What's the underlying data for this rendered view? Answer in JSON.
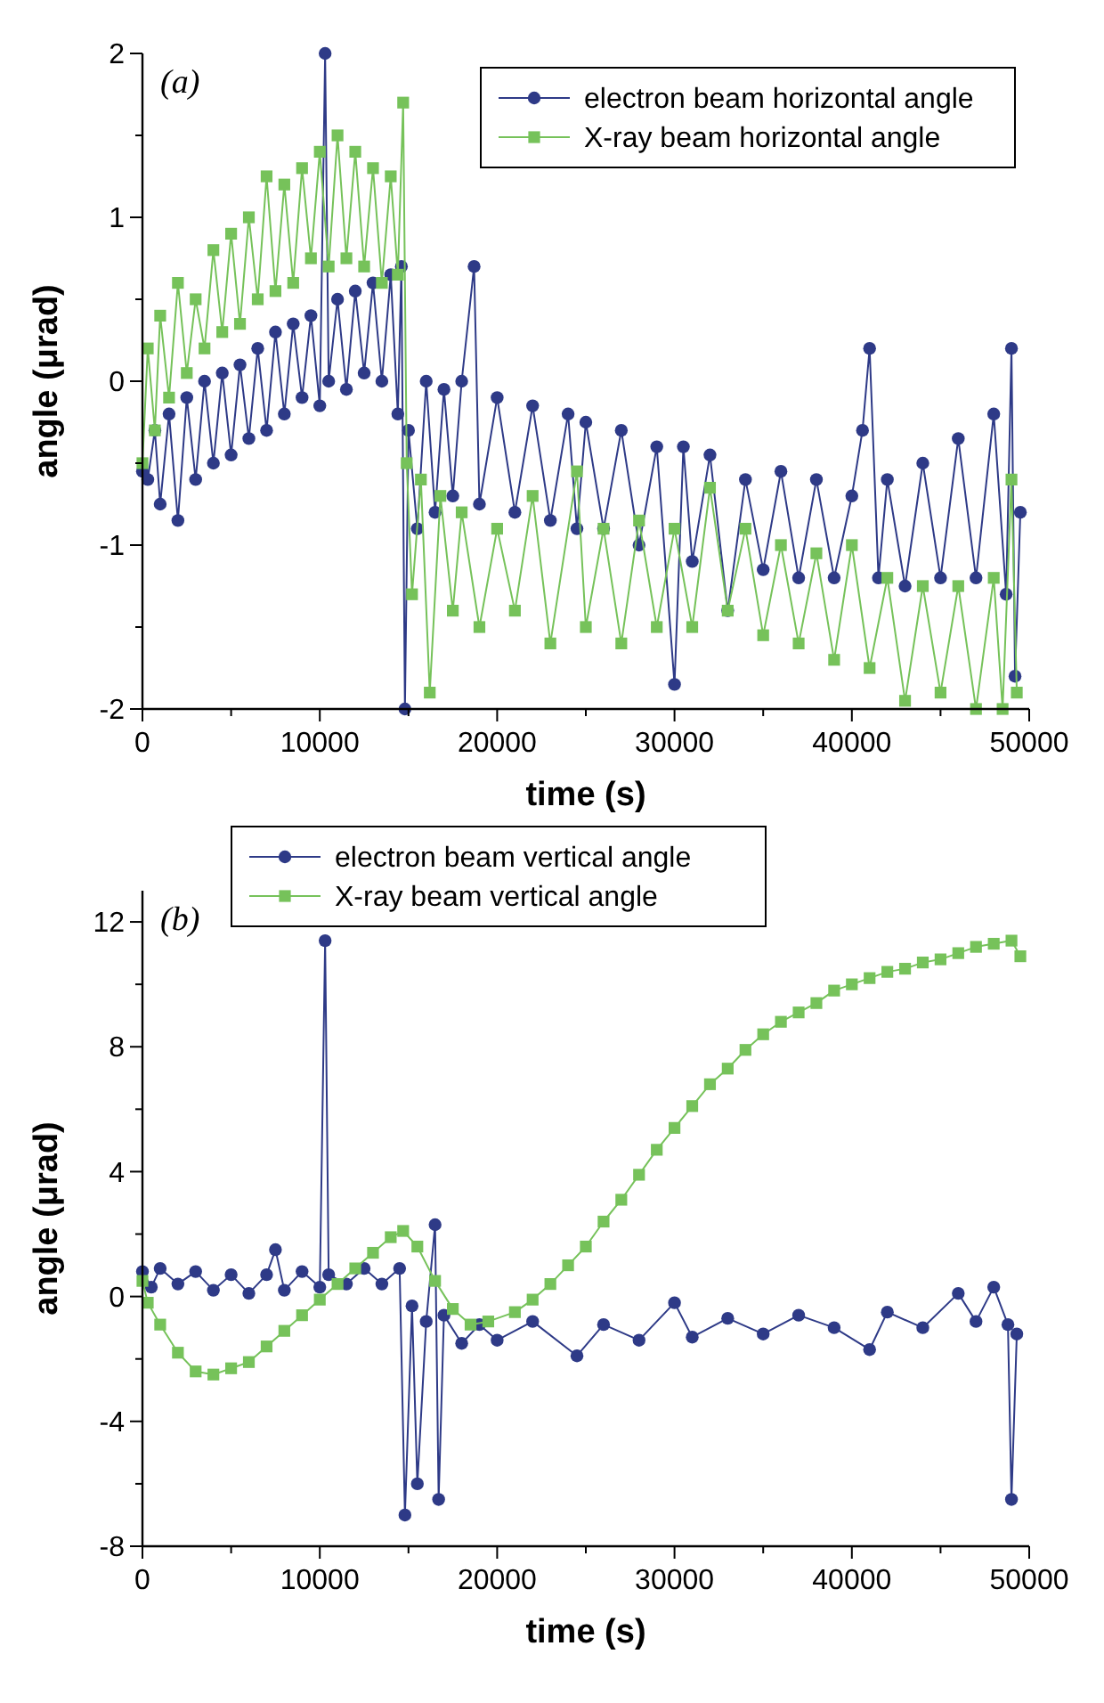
{
  "chart_data": [
    {
      "type": "line",
      "annotations": [
        "(a)"
      ],
      "xlabel": "time (s)",
      "ylabel": "angle (μrad)",
      "xlim": [
        0,
        50000
      ],
      "ylim": [
        -2,
        2
      ],
      "xticks": [
        0,
        {
          "value": 5000,
          "label": null
        },
        10000,
        {
          "value": 15000,
          "label": null
        },
        20000,
        {
          "value": 25000,
          "label": null
        },
        30000,
        {
          "value": 35000,
          "label": null
        },
        40000,
        {
          "value": 45000,
          "label": null
        },
        50000
      ],
      "yticks": [
        -2,
        {
          "value": -1.5,
          "label": null
        },
        -1,
        {
          "value": -0.5,
          "label": null
        },
        0,
        {
          "value": 0.5,
          "label": null
        },
        1,
        {
          "value": 1.5,
          "label": null
        },
        2
      ],
      "legend": "top right",
      "grid": false,
      "line_style": "solid",
      "series": [
        {
          "name": "electron beam horizontal angle",
          "color": "#2e3a87",
          "marker": "circle",
          "x": [
            0,
            300,
            700,
            1000,
            1500,
            2000,
            2500,
            3000,
            3500,
            4000,
            4500,
            5000,
            5500,
            6000,
            6500,
            7000,
            7500,
            8000,
            8500,
            9000,
            9500,
            10000,
            10300,
            10500,
            11000,
            11500,
            12000,
            12500,
            13000,
            13500,
            14000,
            14400,
            14600,
            14800,
            15000,
            15500,
            16000,
            16500,
            17000,
            17500,
            18000,
            18700,
            19000,
            20000,
            21000,
            22000,
            23000,
            24000,
            24500,
            25000,
            26000,
            27000,
            28000,
            29000,
            30000,
            30500,
            31000,
            32000,
            33000,
            34000,
            35000,
            36000,
            37000,
            38000,
            39000,
            40000,
            40600,
            41000,
            41500,
            42000,
            43000,
            44000,
            45000,
            46000,
            47000,
            48000,
            48700,
            49000,
            49200,
            49500
          ],
          "values": [
            -0.55,
            -0.6,
            -0.3,
            -0.75,
            -0.2,
            -0.85,
            -0.1,
            -0.6,
            0,
            -0.5,
            0.05,
            -0.45,
            0.1,
            -0.35,
            0.2,
            -0.3,
            0.3,
            -0.2,
            0.35,
            -0.1,
            0.4,
            -0.15,
            2.0,
            0.0,
            0.5,
            -0.05,
            0.55,
            0.05,
            0.6,
            0.0,
            0.65,
            -0.2,
            0.7,
            -2.0,
            -0.3,
            -0.9,
            0,
            -0.8,
            -0.05,
            -0.7,
            0,
            0.7,
            -0.75,
            -0.1,
            -0.8,
            -0.15,
            -0.85,
            -0.2,
            -0.9,
            -0.25,
            -0.9,
            -0.3,
            -1.0,
            -0.4,
            -1.85,
            -0.4,
            -1.1,
            -0.45,
            -1.4,
            -0.6,
            -1.15,
            -0.55,
            -1.2,
            -0.6,
            -1.2,
            -0.7,
            -0.3,
            0.2,
            -1.2,
            -0.6,
            -1.25,
            -0.5,
            -1.2,
            -0.35,
            -1.2,
            -0.2,
            -1.3,
            0.2,
            -1.8,
            -0.8
          ]
        },
        {
          "name": "X-ray beam horizontal angle",
          "color": "#76c25a",
          "marker": "square",
          "x": [
            0,
            300,
            700,
            1000,
            1500,
            2000,
            2500,
            3000,
            3500,
            4000,
            4500,
            5000,
            5500,
            6000,
            6500,
            7000,
            7500,
            8000,
            8500,
            9000,
            9500,
            10000,
            10500,
            11000,
            11500,
            12000,
            12500,
            13000,
            13500,
            14000,
            14400,
            14700,
            14900,
            15200,
            15700,
            16200,
            16800,
            17500,
            18000,
            19000,
            20000,
            21000,
            22000,
            23000,
            24500,
            25000,
            26000,
            27000,
            28000,
            29000,
            30000,
            31000,
            32000,
            33000,
            34000,
            35000,
            36000,
            37000,
            38000,
            39000,
            40000,
            41000,
            42000,
            43000,
            44000,
            45000,
            46000,
            47000,
            48000,
            48500,
            49000,
            49300
          ],
          "values": [
            -0.5,
            0.2,
            -0.3,
            0.4,
            -0.1,
            0.6,
            0.05,
            0.5,
            0.2,
            0.8,
            0.3,
            0.9,
            0.35,
            1.0,
            0.5,
            1.25,
            0.55,
            1.2,
            0.6,
            1.3,
            0.75,
            1.4,
            0.7,
            1.5,
            0.75,
            1.4,
            0.7,
            1.3,
            0.6,
            1.25,
            0.65,
            1.7,
            -0.5,
            -1.3,
            -0.6,
            -1.9,
            -0.7,
            -1.4,
            -0.8,
            -1.5,
            -0.9,
            -1.4,
            -0.7,
            -1.6,
            -0.55,
            -1.5,
            -0.9,
            -1.6,
            -0.85,
            -1.5,
            -0.9,
            -1.5,
            -0.65,
            -1.4,
            -0.9,
            -1.55,
            -1.0,
            -1.6,
            -1.05,
            -1.7,
            -1.0,
            -1.75,
            -1.2,
            -1.95,
            -1.25,
            -1.9,
            -1.25,
            -2.0,
            -1.2,
            -2.0,
            -0.6,
            -1.9
          ]
        }
      ]
    },
    {
      "type": "line",
      "annotations": [
        "(b)"
      ],
      "xlabel": "time (s)",
      "ylabel": "angle (μrad)",
      "xlim": [
        0,
        50000
      ],
      "ylim": [
        -8,
        13
      ],
      "xticks": [
        0,
        {
          "value": 5000,
          "label": null
        },
        10000,
        {
          "value": 15000,
          "label": null
        },
        20000,
        {
          "value": 25000,
          "label": null
        },
        30000,
        {
          "value": 35000,
          "label": null
        },
        40000,
        {
          "value": 45000,
          "label": null
        },
        50000
      ],
      "yticks": [
        -8,
        {
          "value": -6,
          "label": null
        },
        -4,
        {
          "value": -2,
          "label": null
        },
        0,
        {
          "value": 2,
          "label": null
        },
        4,
        {
          "value": 6,
          "label": null
        },
        8,
        {
          "value": 10,
          "label": null
        },
        12
      ],
      "legend": "top left",
      "grid": false,
      "line_style": "solid",
      "series": [
        {
          "name": "electron beam vertical angle",
          "color": "#2e3a87",
          "marker": "circle",
          "x": [
            0,
            500,
            1000,
            2000,
            3000,
            4000,
            5000,
            6000,
            7000,
            7500,
            8000,
            9000,
            10000,
            10300,
            10500,
            11500,
            12500,
            13500,
            14500,
            14800,
            15200,
            15500,
            16000,
            16500,
            16700,
            17000,
            18000,
            19000,
            20000,
            22000,
            24500,
            26000,
            28000,
            30000,
            31000,
            33000,
            35000,
            37000,
            39000,
            41000,
            42000,
            44000,
            46000,
            47000,
            48000,
            48800,
            49000,
            49300
          ],
          "values": [
            0.8,
            0.3,
            0.9,
            0.4,
            0.8,
            0.2,
            0.7,
            0.1,
            0.7,
            1.5,
            0.2,
            0.8,
            0.3,
            11.4,
            0.7,
            0.4,
            0.9,
            0.4,
            0.9,
            -7.0,
            -0.3,
            -6.0,
            -0.8,
            2.3,
            -6.5,
            -0.6,
            -1.5,
            -0.9,
            -1.4,
            -0.8,
            -1.9,
            -0.9,
            -1.4,
            -0.2,
            -1.3,
            -0.7,
            -1.2,
            -0.6,
            -1.0,
            -1.7,
            -0.5,
            -1.0,
            0.1,
            -0.8,
            0.3,
            -0.9,
            -6.5,
            -1.2
          ]
        },
        {
          "name": "X-ray beam vertical angle",
          "color": "#76c25a",
          "marker": "square",
          "x": [
            0,
            300,
            1000,
            2000,
            3000,
            4000,
            5000,
            6000,
            7000,
            8000,
            9000,
            10000,
            11000,
            12000,
            13000,
            14000,
            14700,
            15500,
            16500,
            17500,
            18500,
            19500,
            21000,
            22000,
            23000,
            24000,
            25000,
            26000,
            27000,
            28000,
            29000,
            30000,
            31000,
            32000,
            33000,
            34000,
            35000,
            36000,
            37000,
            38000,
            39000,
            40000,
            41000,
            42000,
            43000,
            44000,
            45000,
            46000,
            47000,
            48000,
            49000,
            49500
          ],
          "values": [
            0.5,
            -0.2,
            -0.9,
            -1.8,
            -2.4,
            -2.5,
            -2.3,
            -2.1,
            -1.6,
            -1.1,
            -0.6,
            -0.1,
            0.4,
            0.9,
            1.4,
            1.9,
            2.1,
            1.6,
            0.5,
            -0.4,
            -0.9,
            -0.8,
            -0.5,
            -0.1,
            0.4,
            1.0,
            1.6,
            2.4,
            3.1,
            3.9,
            4.7,
            5.4,
            6.1,
            6.8,
            7.3,
            7.9,
            8.4,
            8.8,
            9.1,
            9.4,
            9.8,
            10.0,
            10.2,
            10.4,
            10.5,
            10.7,
            10.8,
            11.0,
            11.2,
            11.3,
            11.4,
            10.9
          ]
        }
      ]
    }
  ]
}
